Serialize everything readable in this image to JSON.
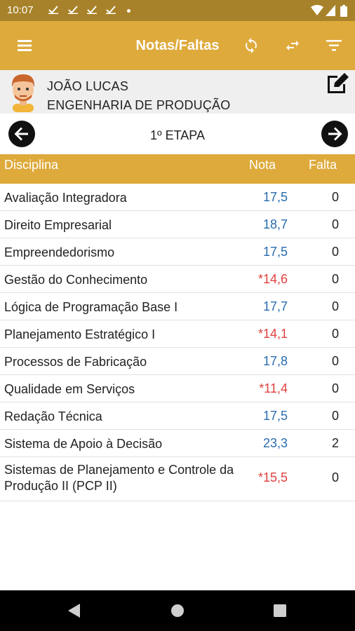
{
  "status_bar": {
    "time": "10:07"
  },
  "app_bar": {
    "title": "Notas/Faltas",
    "menu_icon": "menu-icon",
    "sync_icon": "sync-icon",
    "swap_icon": "swap-icon",
    "filter_icon": "filter-icon"
  },
  "profile": {
    "name": "JOÃO LUCAS",
    "course": "ENGENHARIA DE PRODUÇÃO",
    "edit_icon": "edit-icon"
  },
  "stage": {
    "label": "1º ETAPA"
  },
  "table": {
    "headers": {
      "discipline": "Disciplina",
      "grade": "Nota",
      "absence": "Falta"
    },
    "rows": [
      {
        "discipline": "Avaliação Integradora",
        "grade": "17,5",
        "absence": "0",
        "below_average": false
      },
      {
        "discipline": "Direito Empresarial",
        "grade": "18,7",
        "absence": "0",
        "below_average": false
      },
      {
        "discipline": "Empreendedorismo",
        "grade": "17,5",
        "absence": "0",
        "below_average": false
      },
      {
        "discipline": "Gestão do Conhecimento",
        "grade": "*14,6",
        "absence": "0",
        "below_average": true
      },
      {
        "discipline": "Lógica de Programação Base I",
        "grade": "17,7",
        "absence": "0",
        "below_average": false
      },
      {
        "discipline": "Planejamento Estratégico I",
        "grade": "*14,1",
        "absence": "0",
        "below_average": true
      },
      {
        "discipline": "Processos de Fabricação",
        "grade": "17,8",
        "absence": "0",
        "below_average": false
      },
      {
        "discipline": "Qualidade em Serviços",
        "grade": "*11,4",
        "absence": "0",
        "below_average": true
      },
      {
        "discipline": "Redação Técnica",
        "grade": "17,5",
        "absence": "0",
        "below_average": false
      },
      {
        "discipline": "Sistema de Apoio à Decisão",
        "grade": "23,3",
        "absence": "2",
        "below_average": false
      },
      {
        "discipline": "Sistemas de Planejamento e Controle da Produção II (PCP II)",
        "grade": "*15,5",
        "absence": "0",
        "below_average": true
      }
    ]
  },
  "colors": {
    "status_bar": "#a8822a",
    "app_bar": "#deaa3c",
    "grade_ok": "#2a6cae",
    "grade_low": "#e0403e"
  }
}
